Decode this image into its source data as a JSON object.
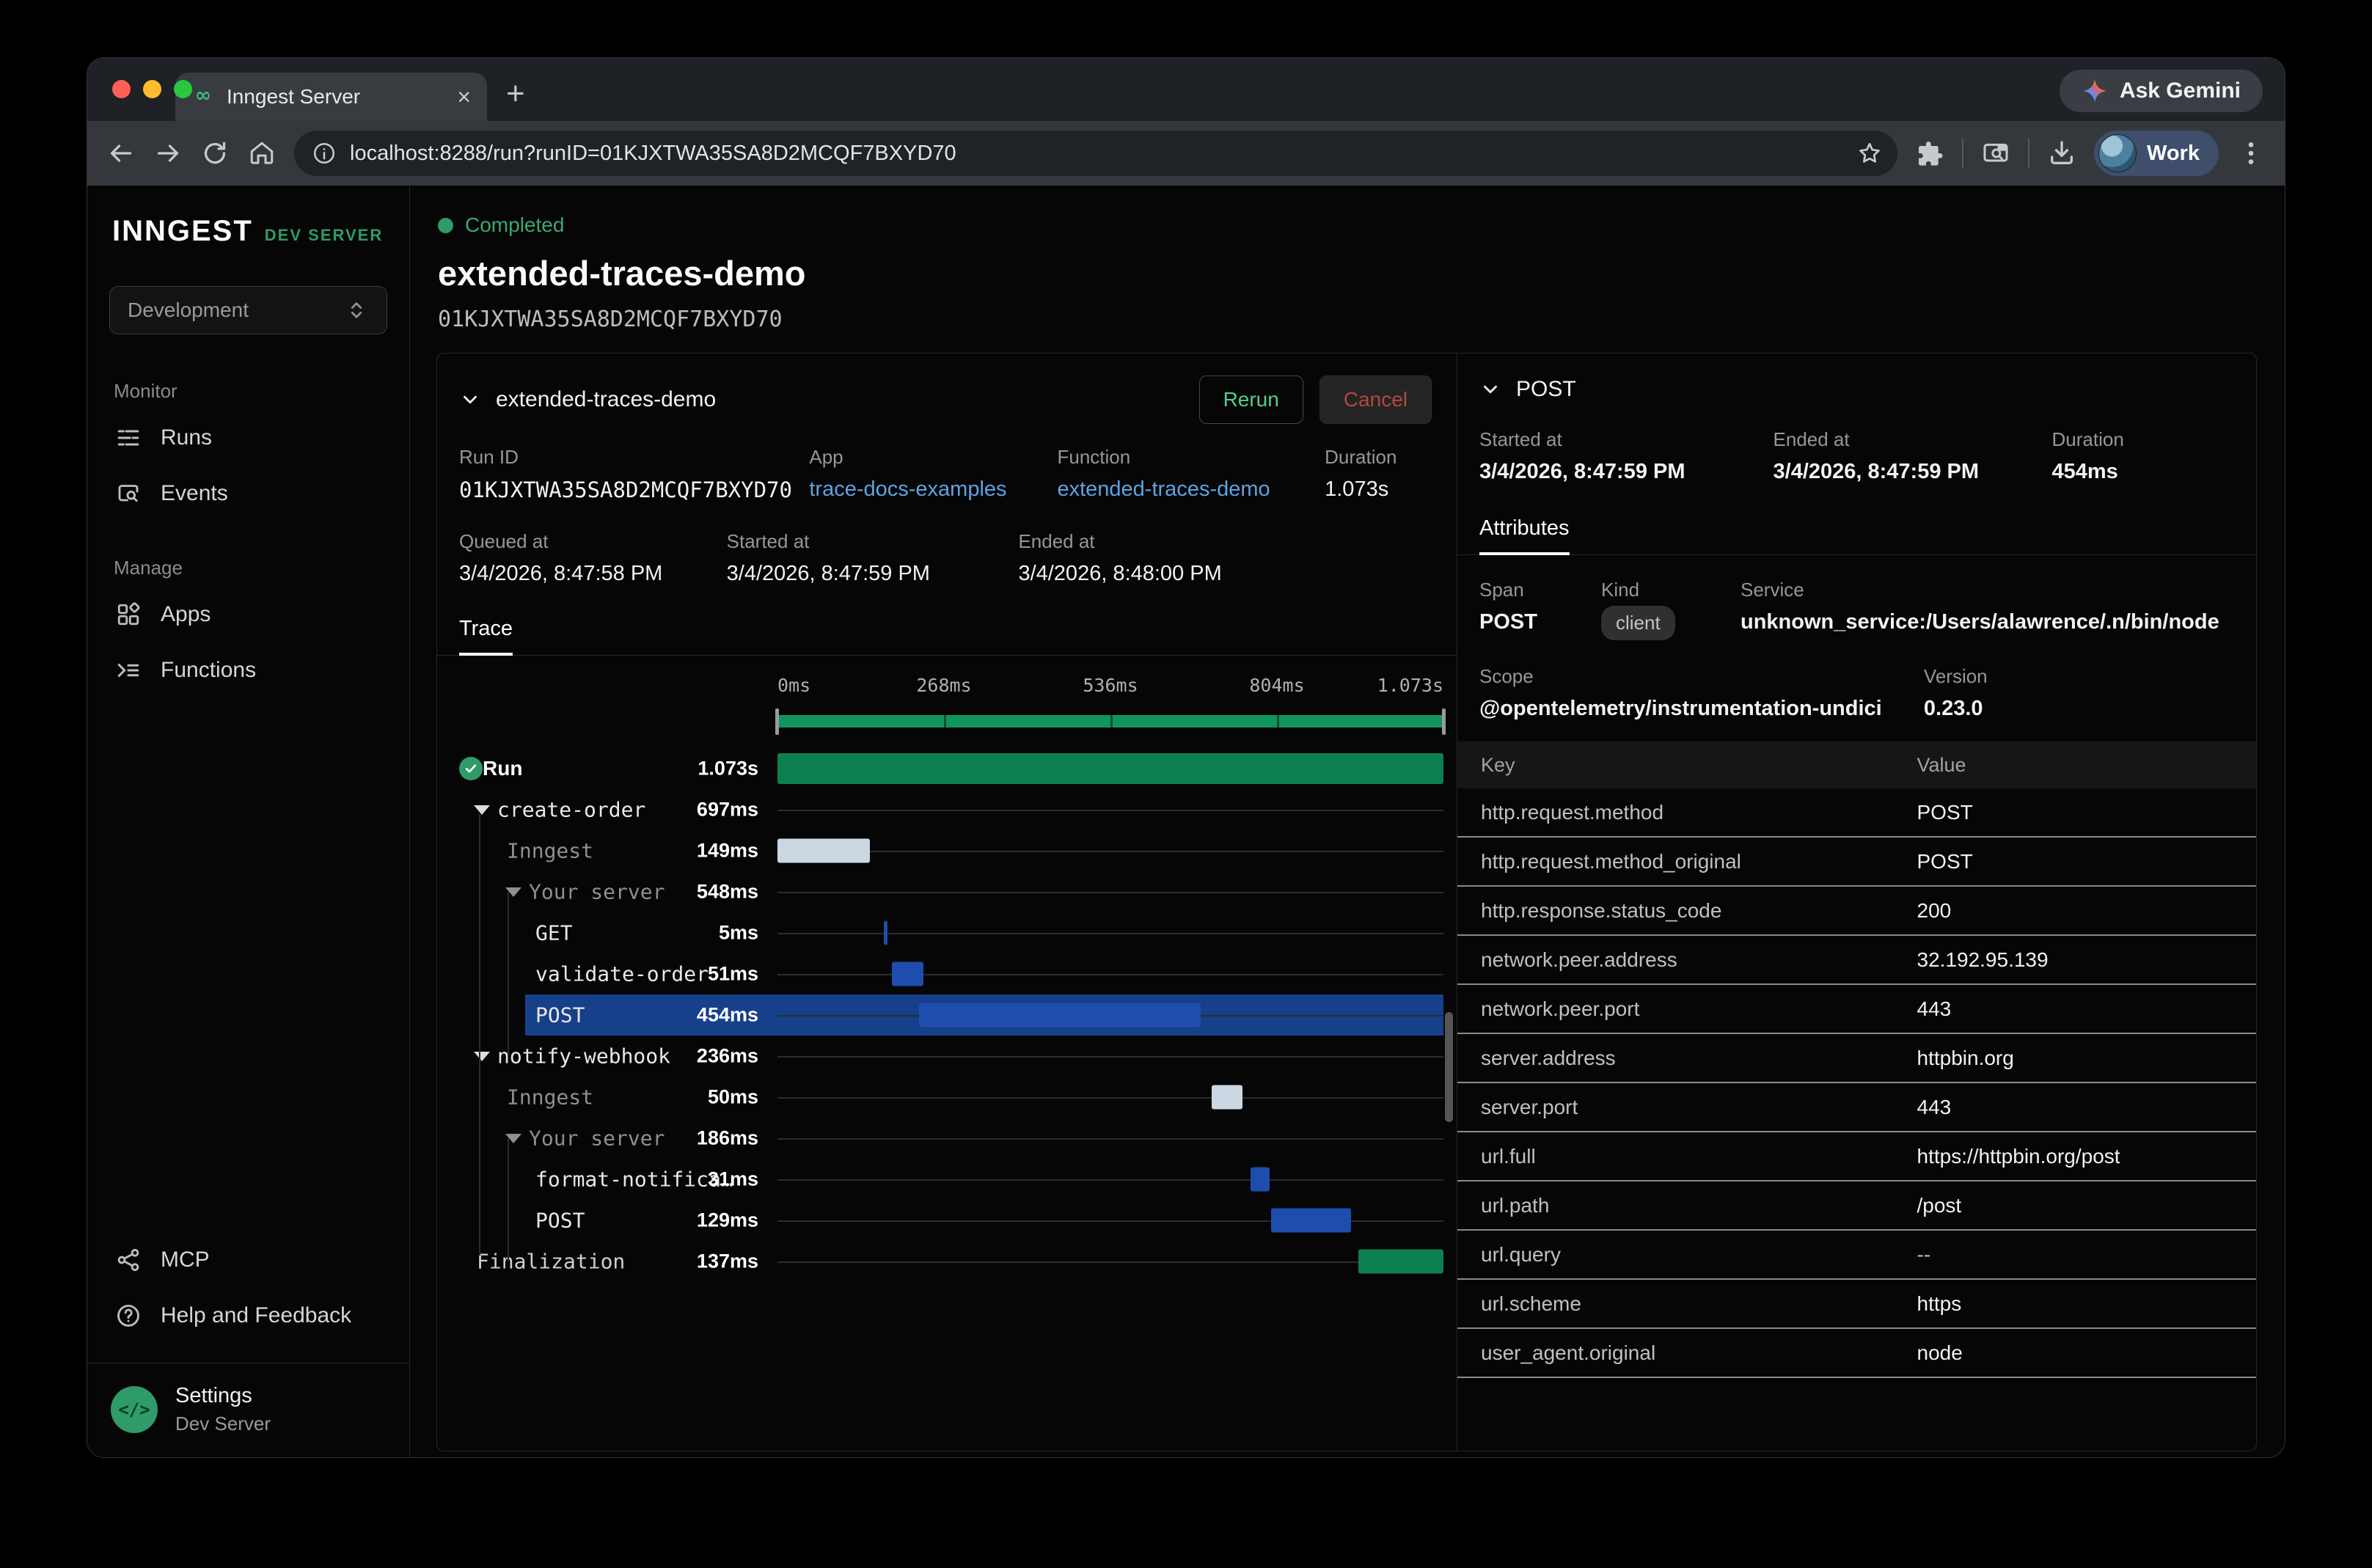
{
  "browser": {
    "tab_title": "Inngest Server",
    "url": "localhost:8288/run?runID=01KJXTWA35SA8D2MCQF7BXYD70",
    "ask_gemini": "Ask Gemini",
    "profile_label": "Work"
  },
  "sidebar": {
    "logo": "INNGEST",
    "logo_suffix": "DEV SERVER",
    "env_select": "Development",
    "sections": [
      {
        "label": "Monitor",
        "items": [
          {
            "label": "Runs"
          },
          {
            "label": "Events"
          }
        ]
      },
      {
        "label": "Manage",
        "items": [
          {
            "label": "Apps"
          },
          {
            "label": "Functions"
          }
        ]
      }
    ],
    "footer": {
      "mcp": "MCP",
      "help": "Help and Feedback"
    },
    "settings_title": "Settings",
    "settings_subtitle": "Dev Server",
    "settings_avatar_glyph": "</>"
  },
  "header": {
    "status": "Completed",
    "title": "extended-traces-demo",
    "run_id": "01KJXTWA35SA8D2MCQF7BXYD70"
  },
  "run_card": {
    "name": "extended-traces-demo",
    "rerun_label": "Rerun",
    "cancel_label": "Cancel",
    "meta": [
      {
        "label": "Run ID",
        "value": "01KJXTWA35SA8D2MCQF7BXYD70"
      },
      {
        "label": "App",
        "value": "trace-docs-examples"
      },
      {
        "label": "Function",
        "value": "extended-traces-demo"
      },
      {
        "label": "Duration",
        "value": "1.073s"
      }
    ],
    "meta2": [
      {
        "label": "Queued at",
        "value": "3/4/2026, 8:47:58 PM"
      },
      {
        "label": "Started at",
        "value": "3/4/2026, 8:47:59 PM"
      },
      {
        "label": "Ended at",
        "value": "3/4/2026, 8:48:00 PM"
      }
    ]
  },
  "trace": {
    "tab": "Trace",
    "total_ms": 1073,
    "axis_ticks": [
      {
        "label": "0ms",
        "pos": 0
      },
      {
        "label": "268ms",
        "pos": 25
      },
      {
        "label": "536ms",
        "pos": 50
      },
      {
        "label": "804ms",
        "pos": 75
      },
      {
        "label": "1.073s",
        "pos": 100
      }
    ],
    "spans": [
      {
        "label": "Run",
        "duration": "1.073s",
        "indent": 0,
        "kind": "run",
        "bar": {
          "start": 0,
          "dur": 1073,
          "color": "green",
          "size": "lg"
        }
      },
      {
        "label": "create-order",
        "duration": "697ms",
        "indent": 1,
        "caret": true
      },
      {
        "label": "Inngest",
        "duration": "149ms",
        "indent": 2,
        "dim": true,
        "bar": {
          "start": 0,
          "dur": 149,
          "color": "light"
        }
      },
      {
        "label": "Your server",
        "duration": "548ms",
        "indent": 3,
        "caret": true,
        "dim": true
      },
      {
        "label": "GET",
        "duration": "5ms",
        "indent": 4,
        "bar": {
          "start": 171,
          "dur": 5,
          "color": "blue"
        }
      },
      {
        "label": "validate-order",
        "duration": "51ms",
        "indent": 4,
        "bar": {
          "start": 184,
          "dur": 51,
          "color": "blue"
        }
      },
      {
        "label": "POST",
        "duration": "454ms",
        "indent": 4,
        "selected": true,
        "bar": {
          "start": 228,
          "dur": 454,
          "color": "blue"
        }
      },
      {
        "label": "notify-webhook",
        "duration": "236ms",
        "indent": 1,
        "caret": true
      },
      {
        "label": "Inngest",
        "duration": "50ms",
        "indent": 2,
        "dim": true,
        "bar": {
          "start": 699,
          "dur": 50,
          "color": "light"
        }
      },
      {
        "label": "Your server",
        "duration": "186ms",
        "indent": 3,
        "caret": true,
        "dim": true
      },
      {
        "label": "format-notifica…",
        "duration": "31ms",
        "indent": 4,
        "bar": {
          "start": 762,
          "dur": 31,
          "color": "blue"
        }
      },
      {
        "label": "POST",
        "duration": "129ms",
        "indent": 4,
        "bar": {
          "start": 795,
          "dur": 129,
          "color": "blue"
        }
      },
      {
        "label": "Finalization",
        "duration": "137ms",
        "indent": 1,
        "finalization": true,
        "bar": {
          "start": 936,
          "dur": 137,
          "color": "green"
        }
      }
    ]
  },
  "span_panel": {
    "title": "POST",
    "meta": [
      {
        "label": "Started at",
        "value": "3/4/2026, 8:47:59 PM"
      },
      {
        "label": "Ended at",
        "value": "3/4/2026, 8:47:59 PM"
      },
      {
        "label": "Duration",
        "value": "454ms"
      }
    ],
    "tab": "Attributes",
    "info": {
      "span_label": "Span",
      "span_value": "POST",
      "kind_label": "Kind",
      "kind_value": "client",
      "service_label": "Service",
      "service_value": "unknown_service:/Users/alawrence/.n/bin/node",
      "scope_label": "Scope",
      "scope_value": "@opentelemetry/instrumentation-undici",
      "version_label": "Version",
      "version_value": "0.23.0"
    },
    "table": {
      "key_header": "Key",
      "value_header": "Value",
      "rows": [
        {
          "key": "http.request.method",
          "value": "POST"
        },
        {
          "key": "http.request.method_original",
          "value": "POST"
        },
        {
          "key": "http.response.status_code",
          "value": "200"
        },
        {
          "key": "network.peer.address",
          "value": "32.192.95.139"
        },
        {
          "key": "network.peer.port",
          "value": "443"
        },
        {
          "key": "server.address",
          "value": "httpbin.org"
        },
        {
          "key": "server.port",
          "value": "443"
        },
        {
          "key": "url.full",
          "value": "https://httpbin.org/post"
        },
        {
          "key": "url.path",
          "value": "/post"
        },
        {
          "key": "url.query",
          "value": "--"
        },
        {
          "key": "url.scheme",
          "value": "https"
        },
        {
          "key": "user_agent.original",
          "value": "node"
        }
      ]
    }
  }
}
